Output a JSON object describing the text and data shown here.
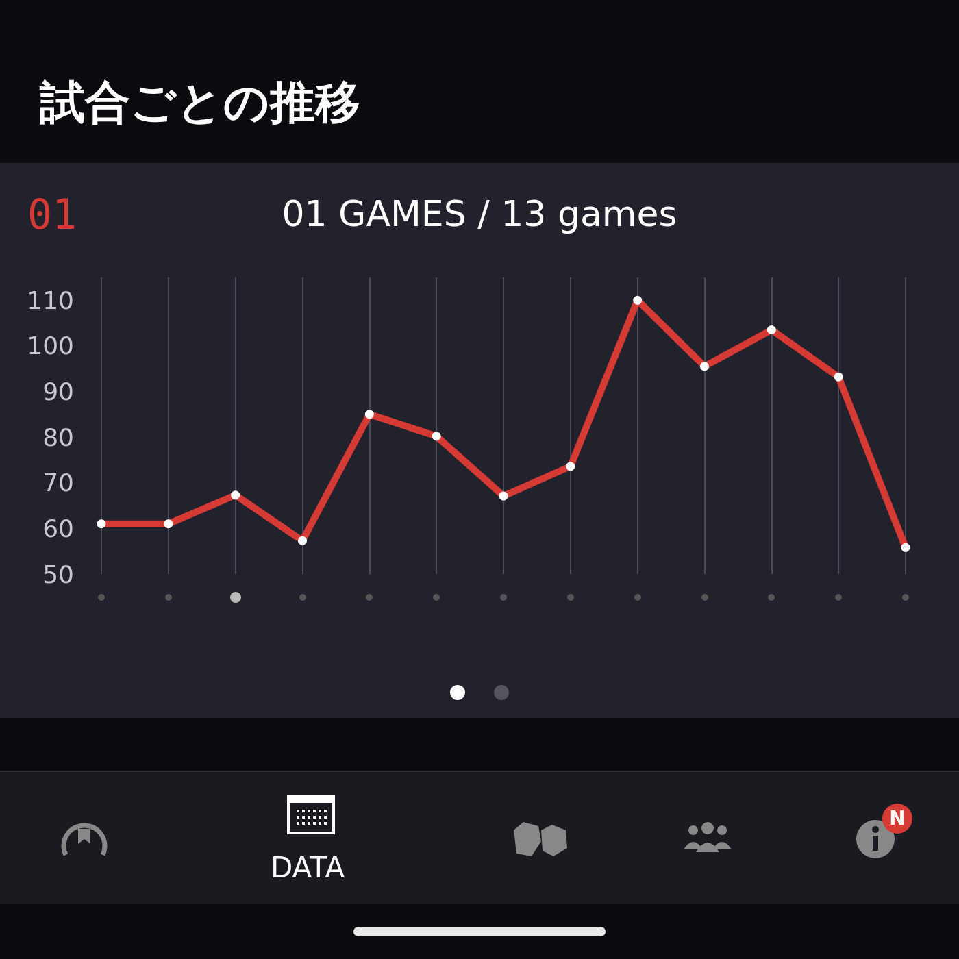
{
  "chart_data": {
    "type": "line",
    "title": "試合ごとの推移",
    "subtitle": "01 GAMES / 13 games",
    "annotations": [
      "01",
      "DATA",
      "N"
    ],
    "categories": [
      null,
      null,
      null,
      null,
      null,
      null,
      null,
      null,
      null,
      null,
      null,
      null,
      null
    ],
    "series": [
      {
        "color": "#d63a34",
        "values": [
          61,
          61,
          67.3,
          57.3,
          85,
          80.2,
          67.1,
          73.6,
          110,
          95.5,
          103.5,
          93.2,
          55.8
        ]
      }
    ],
    "ylim": [
      50,
      115
    ],
    "yticks": [
      50,
      60,
      70,
      80,
      90,
      100,
      110
    ],
    "grid": "x",
    "marker": "circle",
    "line_style": "solid"
  }
}
